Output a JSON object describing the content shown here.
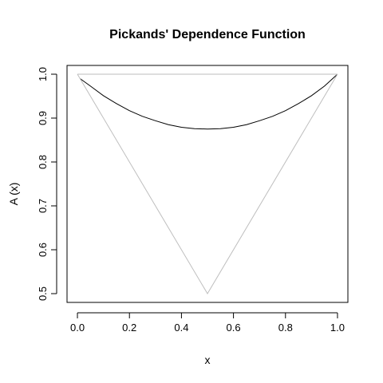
{
  "chart_data": {
    "type": "line",
    "title": "Pickands' Dependence Function",
    "xlabel": "x",
    "ylabel": "A (x)",
    "xlim": [
      -0.04,
      1.04
    ],
    "ylim": [
      0.48,
      1.02
    ],
    "x_ticks": [
      "0.0",
      "0.2",
      "0.4",
      "0.6",
      "0.8",
      "1.0"
    ],
    "y_ticks": [
      "0.5",
      "0.6",
      "0.7",
      "0.8",
      "0.9",
      "1.0"
    ],
    "grid": false,
    "series": [
      {
        "role": "dependence-curve",
        "color": "#000000",
        "x": [
          0.01,
          0.05,
          0.1,
          0.15,
          0.2,
          0.25,
          0.3,
          0.35,
          0.4,
          0.45,
          0.5,
          0.55,
          0.6,
          0.65,
          0.7,
          0.75,
          0.8,
          0.85,
          0.9,
          0.95,
          1.0
        ],
        "y": [
          0.99,
          0.973,
          0.951,
          0.933,
          0.917,
          0.904,
          0.894,
          0.885,
          0.879,
          0.876,
          0.875,
          0.876,
          0.879,
          0.885,
          0.894,
          0.904,
          0.917,
          0.933,
          0.951,
          0.973,
          1.0
        ]
      },
      {
        "role": "upper-bound",
        "color": "#bebebe",
        "x": [
          0.0,
          1.0
        ],
        "y": [
          1.0,
          1.0
        ]
      },
      {
        "role": "lower-bound",
        "color": "#bebebe",
        "x": [
          0.0,
          0.5,
          1.0
        ],
        "y": [
          1.0,
          0.5,
          1.0
        ]
      }
    ]
  }
}
